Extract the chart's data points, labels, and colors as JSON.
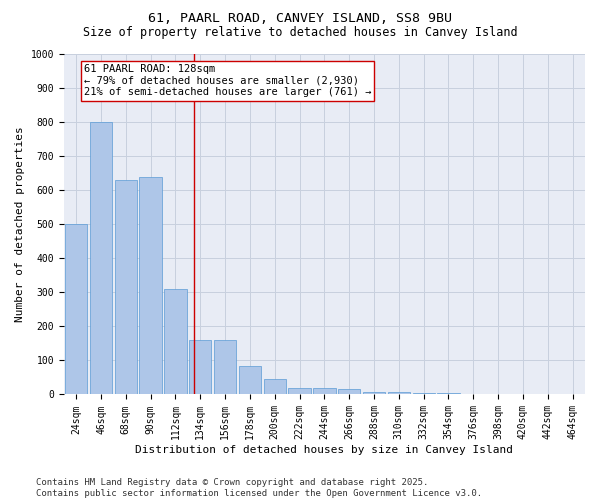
{
  "title": "61, PAARL ROAD, CANVEY ISLAND, SS8 9BU",
  "subtitle": "Size of property relative to detached houses in Canvey Island",
  "xlabel": "Distribution of detached houses by size in Canvey Island",
  "ylabel": "Number of detached properties",
  "categories": [
    "24sqm",
    "46sqm",
    "68sqm",
    "90sqm",
    "112sqm",
    "134sqm",
    "156sqm",
    "178sqm",
    "200sqm",
    "222sqm",
    "244sqm",
    "266sqm",
    "288sqm",
    "310sqm",
    "332sqm",
    "354sqm",
    "376sqm",
    "398sqm",
    "420sqm",
    "442sqm",
    "464sqm"
  ],
  "values": [
    500,
    800,
    630,
    640,
    310,
    160,
    160,
    85,
    45,
    20,
    20,
    15,
    8,
    8,
    5,
    3,
    2,
    1,
    0,
    1,
    0
  ],
  "bar_color": "#aec6e8",
  "bar_edge_color": "#5b9bd5",
  "grid_color": "#c8d0de",
  "background_color": "#e8ecf5",
  "marker_line_color": "#cc0000",
  "annotation_line1": "61 PAARL ROAD: 128sqm",
  "annotation_line2": "← 79% of detached houses are smaller (2,930)",
  "annotation_line3": "21% of semi-detached houses are larger (761) →",
  "annotation_box_color": "#ffffff",
  "ylim": [
    0,
    1000
  ],
  "yticks": [
    0,
    100,
    200,
    300,
    400,
    500,
    600,
    700,
    800,
    900,
    1000
  ],
  "footer_line1": "Contains HM Land Registry data © Crown copyright and database right 2025.",
  "footer_line2": "Contains public sector information licensed under the Open Government Licence v3.0.",
  "title_fontsize": 9.5,
  "subtitle_fontsize": 8.5,
  "axis_label_fontsize": 8,
  "tick_fontsize": 7,
  "annotation_fontsize": 7.5,
  "footer_fontsize": 6.5
}
